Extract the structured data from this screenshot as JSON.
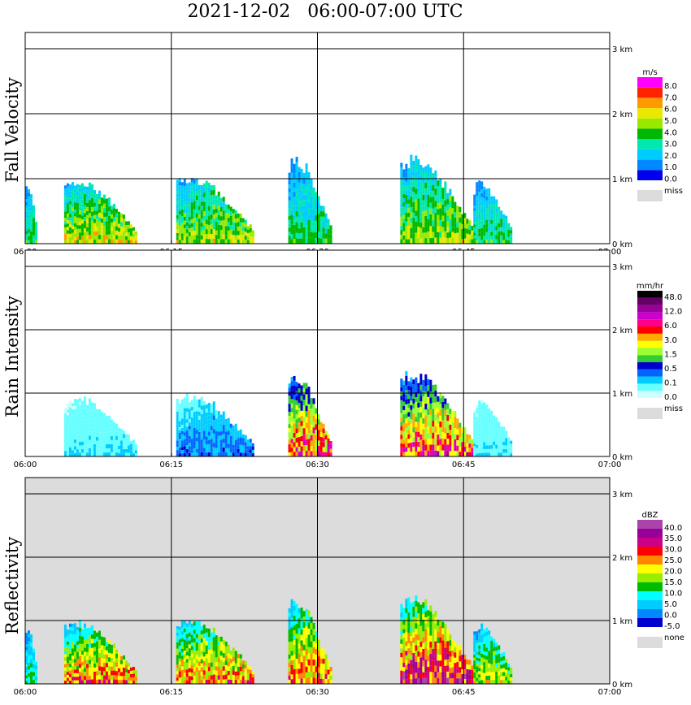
{
  "title": "2021-12-02   06:00-07:00 UTC",
  "x_ticks": [
    "06:00",
    "06:15",
    "06:30",
    "06:45",
    "07:00"
  ],
  "y_ticks": [
    "0 km",
    "1 km",
    "2 km",
    "3 km"
  ],
  "chart_data": [
    {
      "type": "heatmap",
      "ylabel": "Fall Velocity",
      "xlim": [
        "06:00",
        "07:00"
      ],
      "ylim_km": [
        0,
        3
      ],
      "grid": true,
      "background": "#ffffff",
      "colorbar": {
        "unit": "m/s",
        "colors": [
          "#0000ee",
          "#0088ff",
          "#00ccff",
          "#00e8b0",
          "#00b800",
          "#99e800",
          "#e8e800",
          "#ff9900",
          "#ff2200",
          "#ff00ff"
        ],
        "labels": [
          "0.0",
          "1.0",
          "2.0",
          "3.0",
          "4.0",
          "5.0",
          "6.0",
          "7.0",
          "8.0"
        ],
        "missing_label": "miss",
        "missing_color": "#dcdcdc"
      },
      "echo_cells": [
        {
          "start_min": 0.0,
          "end_min": 1.2,
          "top_km": 1.0,
          "value": 2.5
        },
        {
          "start_min": 4.0,
          "end_min": 11.5,
          "top_km": 1.05,
          "value": 4.0
        },
        {
          "start_min": 15.5,
          "end_min": 23.5,
          "top_km": 1.1,
          "value": 3.5
        },
        {
          "start_min": 27.0,
          "end_min": 31.3,
          "top_km": 1.4,
          "value": 2.5
        },
        {
          "start_min": 38.5,
          "end_min": 46.0,
          "top_km": 1.4,
          "value": 3.5
        },
        {
          "start_min": 46.0,
          "end_min": 50.0,
          "top_km": 1.0,
          "value": 2.5
        }
      ]
    },
    {
      "type": "heatmap",
      "ylabel": "Rain Intensity",
      "xlim": [
        "06:00",
        "07:00"
      ],
      "ylim_km": [
        0,
        3
      ],
      "grid": true,
      "background": "#ffffff",
      "colorbar": {
        "unit": "mm/hr",
        "colors": [
          "#ccffff",
          "#66ffff",
          "#00ccff",
          "#0066ff",
          "#0000cc",
          "#33cc33",
          "#99ff33",
          "#ffff00",
          "#ffaa00",
          "#ff0000",
          "#ff0088",
          "#cc00cc",
          "#990099",
          "#660066",
          "#000000"
        ],
        "labels": [
          "0.0",
          "0.1",
          "0.5",
          "1.5",
          "3.0",
          "6.0",
          "12.0",
          "48.0"
        ],
        "missing_label": "miss",
        "missing_color": "#dcdcdc"
      },
      "echo_cells": [
        {
          "start_min": 4.0,
          "end_min": 11.5,
          "top_km": 1.0,
          "value": 0.5
        },
        {
          "start_min": 15.5,
          "end_min": 23.5,
          "top_km": 1.05,
          "value": 1.0
        },
        {
          "start_min": 27.0,
          "end_min": 31.3,
          "top_km": 1.35,
          "value": 3.0
        },
        {
          "start_min": 38.5,
          "end_min": 46.0,
          "top_km": 1.4,
          "value": 3.0
        },
        {
          "start_min": 46.0,
          "end_min": 50.0,
          "top_km": 0.95,
          "value": 0.5
        }
      ]
    },
    {
      "type": "heatmap",
      "ylabel": "Reflectivity",
      "xlim": [
        "06:00",
        "07:00"
      ],
      "ylim_km": [
        0,
        3
      ],
      "grid": true,
      "background": "#dcdcdc",
      "colorbar": {
        "unit": "dBZ",
        "colors": [
          "#0000cc",
          "#0088ff",
          "#00ccff",
          "#00ffff",
          "#00bb00",
          "#99ee00",
          "#ffff00",
          "#ff8800",
          "#ff0000",
          "#cc0088",
          "#990099",
          "#aa44aa"
        ],
        "labels": [
          "-5.0",
          "0.0",
          "5.0",
          "10.0",
          "15.0",
          "20.0",
          "25.0",
          "30.0",
          "35.0",
          "40.0"
        ],
        "missing_label": "none",
        "missing_color": "#dcdcdc"
      },
      "echo_cells": [
        {
          "start_min": 0.0,
          "end_min": 1.2,
          "top_km": 1.0,
          "value": 10
        },
        {
          "start_min": 4.0,
          "end_min": 11.5,
          "top_km": 1.05,
          "value": 20
        },
        {
          "start_min": 15.5,
          "end_min": 23.5,
          "top_km": 1.1,
          "value": 20
        },
        {
          "start_min": 27.0,
          "end_min": 31.3,
          "top_km": 1.4,
          "value": 20
        },
        {
          "start_min": 38.5,
          "end_min": 46.0,
          "top_km": 1.45,
          "value": 25
        },
        {
          "start_min": 46.0,
          "end_min": 50.0,
          "top_km": 1.0,
          "value": 15
        }
      ]
    }
  ]
}
